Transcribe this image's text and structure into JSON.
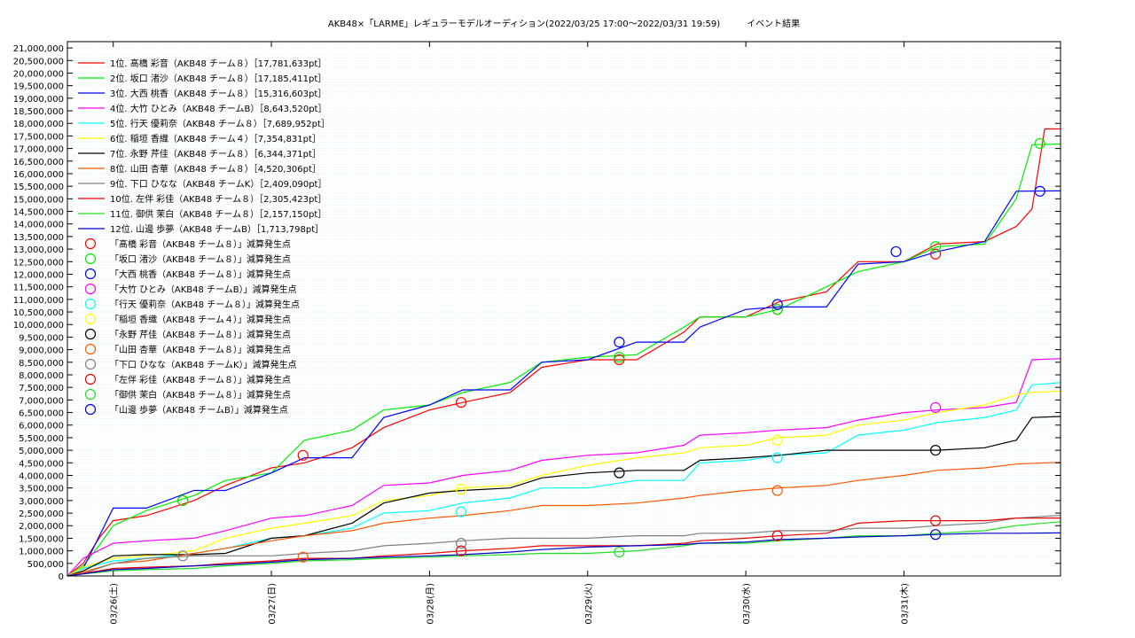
{
  "chart_data": {
    "type": "line",
    "title": "AKB48×「LARME」レギュラーモデルオーディション(2022/03/25 17:00〜2022/03/31 19:59)　　　イベント結果",
    "xlabel": "",
    "ylabel": "",
    "ylim": [
      0,
      21250000
    ],
    "xlim": [
      0,
      6.28
    ],
    "grid": true,
    "legend_position": "top-left",
    "y_ticks": [
      0,
      500000,
      1000000,
      1500000,
      2000000,
      2500000,
      3000000,
      3500000,
      4000000,
      4500000,
      5000000,
      5500000,
      6000000,
      6500000,
      7000000,
      7500000,
      8000000,
      8500000,
      9000000,
      9500000,
      10000000,
      10500000,
      11000000,
      11500000,
      12000000,
      12500000,
      13000000,
      13500000,
      14000000,
      14500000,
      15000000,
      15500000,
      16000000,
      16500000,
      17000000,
      17500000,
      18000000,
      18500000,
      19000000,
      19500000,
      20000000,
      20500000,
      21000000
    ],
    "y_tick_labels": [
      "0",
      "500,000",
      "1,000,000",
      "1,500,000",
      "2,000,000",
      "2,500,000",
      "3,000,000",
      "3,500,000",
      "4,000,000",
      "4,500,000",
      "5,000,000",
      "5,500,000",
      "6,000,000",
      "6,500,000",
      "7,000,000",
      "7,500,000",
      "8,000,000",
      "8,500,000",
      "9,000,000",
      "9,500,000",
      "10,000,000",
      "10,500,000",
      "11,000,000",
      "11,500,000",
      "12,000,000",
      "12,500,000",
      "13,000,000",
      "13,500,000",
      "14,000,000",
      "14,500,000",
      "15,000,000",
      "15,500,000",
      "16,000,000",
      "16,500,000",
      "17,000,000",
      "17,500,000",
      "18,000,000",
      "18,500,000",
      "19,000,000",
      "19,500,000",
      "20,000,000",
      "20,500,000",
      "21,000,000"
    ],
    "x_ticks": [
      0.29,
      1.29,
      2.29,
      3.29,
      4.29,
      5.29
    ],
    "x_tick_labels": [
      "03/26(土)",
      "03/27(日)",
      "03/28(月)",
      "03/29(火)",
      "03/30(水)",
      "03/31(木)"
    ],
    "series": [
      {
        "name": "1位. 髙橋 彩音（AKB48 チーム８）［17,781,633pt］",
        "color": "#ff0000",
        "x": [
          0,
          0.1,
          0.2,
          0.29,
          0.5,
          0.8,
          1.0,
          1.29,
          1.5,
          1.8,
          2.0,
          2.29,
          2.5,
          2.8,
          3.0,
          3.29,
          3.6,
          3.9,
          4.0,
          4.29,
          4.5,
          4.8,
          5.0,
          5.29,
          5.5,
          5.8,
          6.0,
          6.1,
          6.18,
          6.28
        ],
        "y": [
          0,
          500000,
          1500000,
          2200000,
          2400000,
          3000000,
          3600000,
          4300000,
          4500000,
          5100000,
          5900000,
          6600000,
          6900000,
          7300000,
          8300000,
          8600000,
          8600000,
          9700000,
          10300000,
          10300000,
          10900000,
          11300000,
          12500000,
          12500000,
          13200000,
          13300000,
          13900000,
          14600000,
          17780000,
          17780000
        ]
      },
      {
        "name": "2位. 坂口 渚沙（AKB48 チーム８）［17,185,411pt］",
        "color": "#00ee00",
        "x": [
          0,
          0.1,
          0.2,
          0.29,
          0.5,
          0.8,
          1.0,
          1.29,
          1.5,
          1.8,
          2.0,
          2.29,
          2.5,
          2.8,
          3.0,
          3.29,
          3.6,
          3.9,
          4.0,
          4.29,
          4.5,
          4.8,
          5.0,
          5.29,
          5.5,
          5.8,
          6.0,
          6.1,
          6.28
        ],
        "y": [
          0,
          400000,
          1200000,
          2000000,
          2600000,
          3200000,
          3800000,
          4100000,
          5400000,
          5800000,
          6600000,
          6800000,
          7300000,
          7700000,
          8500000,
          8700000,
          8800000,
          9900000,
          10300000,
          10300000,
          10600000,
          11500000,
          12100000,
          12500000,
          13100000,
          13200000,
          15000000,
          17150000,
          17180000
        ]
      },
      {
        "name": "3位. 大西 桃香（AKB48 チーム８）［15,316,603pt］",
        "color": "#0000ff",
        "x": [
          0,
          0.1,
          0.29,
          0.5,
          0.8,
          1.0,
          1.29,
          1.5,
          1.8,
          2.0,
          2.29,
          2.5,
          2.8,
          3.0,
          3.29,
          3.6,
          3.9,
          4.0,
          4.29,
          4.5,
          4.8,
          5.0,
          5.29,
          5.5,
          5.8,
          6.0,
          6.1,
          6.28
        ],
        "y": [
          0,
          300000,
          2700000,
          2700000,
          3400000,
          3400000,
          4100000,
          4700000,
          4700000,
          6300000,
          6800000,
          7400000,
          7400000,
          8500000,
          8600000,
          9300000,
          9300000,
          9900000,
          10600000,
          10700000,
          10700000,
          12400000,
          12500000,
          12900000,
          13300000,
          15300000,
          15310000,
          15316000
        ]
      },
      {
        "name": "4位. 大竹 ひとみ（AKB48 チームB）［8,643,520pt］",
        "color": "#ff00ff",
        "x": [
          0,
          0.1,
          0.29,
          0.5,
          0.8,
          1.0,
          1.29,
          1.5,
          1.8,
          2.0,
          2.29,
          2.5,
          2.8,
          3.0,
          3.29,
          3.6,
          3.9,
          4.0,
          4.29,
          4.5,
          4.8,
          5.0,
          5.29,
          5.5,
          5.8,
          6.0,
          6.1,
          6.28
        ],
        "y": [
          0,
          700000,
          1300000,
          1400000,
          1500000,
          1800000,
          2300000,
          2400000,
          2800000,
          3600000,
          3700000,
          4000000,
          4200000,
          4600000,
          4800000,
          4900000,
          5200000,
          5600000,
          5700000,
          5800000,
          5900000,
          6200000,
          6500000,
          6600000,
          6700000,
          6900000,
          8600000,
          8643000
        ]
      },
      {
        "name": "5位. 行天 優莉奈（AKB48 チーム８）［7,689,952pt］",
        "color": "#00ffff",
        "x": [
          0,
          0.1,
          0.29,
          0.5,
          0.8,
          1.0,
          1.29,
          1.5,
          1.8,
          2.0,
          2.29,
          2.5,
          2.8,
          3.0,
          3.29,
          3.6,
          3.9,
          4.0,
          4.29,
          4.5,
          4.8,
          5.0,
          5.29,
          5.5,
          5.8,
          6.0,
          6.1,
          6.28
        ],
        "y": [
          0,
          300000,
          600000,
          700000,
          900000,
          1100000,
          1500000,
          1600000,
          1900000,
          2500000,
          2600000,
          2900000,
          3100000,
          3500000,
          3500000,
          3800000,
          3800000,
          4500000,
          4600000,
          4800000,
          4900000,
          5600000,
          5800000,
          6100000,
          6300000,
          6600000,
          7600000,
          7690000
        ]
      },
      {
        "name": "6位. 稲垣 香織（AKB48 チーム４）［7,354,831pt］",
        "color": "#ffff00",
        "x": [
          0,
          0.1,
          0.29,
          0.5,
          0.8,
          1.0,
          1.29,
          1.5,
          1.8,
          2.0,
          2.29,
          2.5,
          2.8,
          3.0,
          3.29,
          3.6,
          3.9,
          4.0,
          4.29,
          4.5,
          4.8,
          5.0,
          5.29,
          5.5,
          5.8,
          6.0,
          6.1,
          6.28
        ],
        "y": [
          0,
          350000,
          700000,
          800000,
          1000000,
          1500000,
          1900000,
          2100000,
          2400000,
          3000000,
          3200000,
          3500000,
          3600000,
          4000000,
          4400000,
          4700000,
          4900000,
          5100000,
          5200000,
          5500000,
          5600000,
          6000000,
          6200000,
          6500000,
          6800000,
          7200000,
          7300000,
          7354000
        ]
      },
      {
        "name": "7位. 永野 芹佳（AKB48 チーム８）［6,344,371pt］",
        "color": "#000000",
        "x": [
          0,
          0.1,
          0.29,
          0.5,
          0.8,
          1.0,
          1.29,
          1.5,
          1.8,
          2.0,
          2.29,
          2.5,
          2.8,
          3.0,
          3.29,
          3.6,
          3.9,
          4.0,
          4.29,
          4.5,
          4.8,
          5.0,
          5.29,
          5.5,
          5.8,
          6.0,
          6.1,
          6.28
        ],
        "y": [
          0,
          200000,
          800000,
          850000,
          850000,
          900000,
          1500000,
          1600000,
          2100000,
          2900000,
          3300000,
          3400000,
          3500000,
          3900000,
          4100000,
          4200000,
          4200000,
          4600000,
          4700000,
          4800000,
          5000000,
          5000000,
          5000000,
          5000000,
          5100000,
          5400000,
          6300000,
          6344000
        ]
      },
      {
        "name": "8位. 山田 杏華（AKB48 チーム８）［4,520,306pt］",
        "color": "#ff5500",
        "x": [
          0,
          0.1,
          0.29,
          0.5,
          0.8,
          1.0,
          1.29,
          1.5,
          1.8,
          2.0,
          2.29,
          2.5,
          2.8,
          3.0,
          3.29,
          3.6,
          3.9,
          4.0,
          4.29,
          4.5,
          4.8,
          5.0,
          5.29,
          5.5,
          5.8,
          6.0,
          6.28
        ],
        "y": [
          0,
          150000,
          500000,
          600000,
          900000,
          1100000,
          1400000,
          1600000,
          1800000,
          2100000,
          2300000,
          2400000,
          2600000,
          2800000,
          2800000,
          2900000,
          3100000,
          3200000,
          3400000,
          3500000,
          3600000,
          3800000,
          4000000,
          4200000,
          4300000,
          4450000,
          4520000
        ]
      },
      {
        "name": "9位. 下口 ひなな（AKB48 チームK）［2,409,090pt］",
        "color": "#808080",
        "x": [
          0,
          0.1,
          0.29,
          0.5,
          0.8,
          1.0,
          1.29,
          1.5,
          1.8,
          2.0,
          2.29,
          2.5,
          2.8,
          3.0,
          3.29,
          3.6,
          3.9,
          4.0,
          4.29,
          4.5,
          4.8,
          5.0,
          5.29,
          5.5,
          5.8,
          6.0,
          6.28
        ],
        "y": [
          0,
          100000,
          500000,
          700000,
          800000,
          800000,
          800000,
          900000,
          1000000,
          1200000,
          1300000,
          1400000,
          1500000,
          1500000,
          1500000,
          1600000,
          1600000,
          1700000,
          1700000,
          1800000,
          1800000,
          1900000,
          1900000,
          2000000,
          2100000,
          2300000,
          2409000
        ]
      },
      {
        "name": "10位. 左伴 彩佳（AKB48 チーム８）［2,305,423pt］",
        "color": "#ee0000",
        "x": [
          0,
          0.1,
          0.29,
          0.5,
          0.8,
          1.0,
          1.29,
          1.5,
          1.8,
          2.0,
          2.29,
          2.5,
          2.8,
          3.0,
          3.29,
          3.6,
          3.9,
          4.0,
          4.29,
          4.5,
          4.8,
          5.0,
          5.29,
          5.5,
          5.8,
          6.0,
          6.28
        ],
        "y": [
          0,
          100000,
          300000,
          350000,
          400000,
          500000,
          600000,
          700000,
          700000,
          800000,
          900000,
          1000000,
          1100000,
          1200000,
          1200000,
          1200000,
          1300000,
          1400000,
          1500000,
          1600000,
          1700000,
          2100000,
          2200000,
          2200000,
          2200000,
          2300000,
          2305000
        ]
      },
      {
        "name": "11位. 御供 茉白（AKB48 チーム８）［2,157,150pt］",
        "color": "#22dd22",
        "x": [
          0,
          0.1,
          0.29,
          0.5,
          0.8,
          1.0,
          1.29,
          1.5,
          1.8,
          2.0,
          2.29,
          2.5,
          2.8,
          3.0,
          3.29,
          3.6,
          3.9,
          4.0,
          4.29,
          4.5,
          4.8,
          5.0,
          5.29,
          5.5,
          5.8,
          6.0,
          6.28
        ],
        "y": [
          0,
          80000,
          200000,
          250000,
          300000,
          400000,
          500000,
          600000,
          650000,
          700000,
          750000,
          800000,
          850000,
          900000,
          900000,
          1000000,
          1200000,
          1300000,
          1300000,
          1400000,
          1500000,
          1600000,
          1600000,
          1700000,
          1800000,
          2000000,
          2157000
        ]
      },
      {
        "name": "12位. 山邊 歩夢（AKB48 チームB）［1,713,798pt］",
        "color": "#0000cc",
        "x": [
          0,
          0.1,
          0.29,
          0.5,
          0.8,
          1.0,
          1.29,
          1.5,
          1.8,
          2.0,
          2.29,
          2.5,
          2.8,
          3.0,
          3.29,
          3.6,
          3.9,
          4.0,
          4.29,
          4.5,
          4.8,
          5.0,
          5.29,
          5.5,
          5.8,
          6.0,
          6.28
        ],
        "y": [
          0,
          80000,
          250000,
          300000,
          400000,
          450000,
          550000,
          650000,
          700000,
          750000,
          800000,
          850000,
          950000,
          1050000,
          1150000,
          1200000,
          1250000,
          1300000,
          1350000,
          1450000,
          1500000,
          1550000,
          1600000,
          1650000,
          1700000,
          1700000,
          1713000
        ]
      }
    ],
    "markers": [
      {
        "name": "「髙橋 彩音（AKB48 チーム８）」減算発生点",
        "color": "#ff0000",
        "points": [
          [
            0.73,
            3000000
          ],
          [
            1.49,
            4800000
          ],
          [
            2.49,
            6900000
          ],
          [
            3.49,
            8600000
          ],
          [
            4.49,
            10600000
          ],
          [
            5.49,
            12800000
          ]
        ]
      },
      {
        "name": "「坂口 渚沙（AKB48 チーム８）」減算発生点",
        "color": "#00ee00",
        "points": [
          [
            0.73,
            3000000
          ],
          [
            3.49,
            8700000
          ],
          [
            4.49,
            10600000
          ],
          [
            5.49,
            13100000
          ],
          [
            6.15,
            17200000
          ]
        ]
      },
      {
        "name": "「大西 桃香（AKB48 チーム８）」減算発生点",
        "color": "#0000ff",
        "points": [
          [
            3.49,
            9300000
          ],
          [
            4.49,
            10800000
          ],
          [
            5.24,
            12900000
          ],
          [
            6.15,
            15300000
          ]
        ]
      },
      {
        "name": "「大竹 ひとみ（AKB48 チームB）」減算発生点",
        "color": "#ff00ff",
        "points": [
          [
            5.49,
            6700000
          ]
        ]
      },
      {
        "name": "「行天 優莉奈（AKB48 チーム８）」減算発生点",
        "color": "#00ffff",
        "points": [
          [
            2.49,
            2550000
          ],
          [
            4.49,
            4700000
          ]
        ]
      },
      {
        "name": "「稲垣 香織（AKB48 チーム４）」減算発生点",
        "color": "#ffff00",
        "points": [
          [
            2.49,
            3450000
          ],
          [
            4.49,
            5400000
          ]
        ]
      },
      {
        "name": "「永野 芹佳（AKB48 チーム８）」減算発生点",
        "color": "#000000",
        "points": [
          [
            3.49,
            4100000
          ],
          [
            5.49,
            5000000
          ]
        ]
      },
      {
        "name": "「山田 杏華（AKB48 チーム８）」減算発生点",
        "color": "#ff5500",
        "points": [
          [
            1.49,
            750000
          ],
          [
            4.49,
            3400000
          ]
        ]
      },
      {
        "name": "「下口 ひなな（AKB48 チームK）」減算発生点",
        "color": "#808080",
        "points": [
          [
            0.73,
            800000
          ],
          [
            2.49,
            1300000
          ]
        ]
      },
      {
        "name": "「左伴 彩佳（AKB48 チーム８）」減算発生点",
        "color": "#ee0000",
        "points": [
          [
            2.49,
            1000000
          ],
          [
            4.49,
            1600000
          ],
          [
            5.49,
            2200000
          ]
        ]
      },
      {
        "name": "「御供 茉白（AKB48 チーム８）」減算発生点",
        "color": "#22dd22",
        "points": [
          [
            3.49,
            950000
          ]
        ]
      },
      {
        "name": "「山邊 歩夢（AKB48 チームB）」減算発生点",
        "color": "#0000cc",
        "points": [
          [
            5.49,
            1650000
          ]
        ]
      }
    ]
  }
}
